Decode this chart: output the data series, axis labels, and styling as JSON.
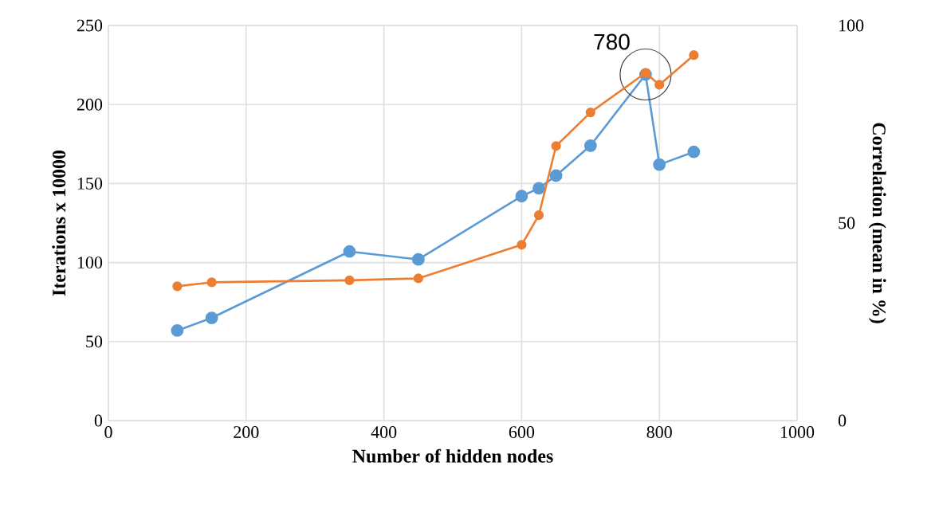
{
  "chart_data": {
    "type": "line",
    "xlabel": "Number of hidden nodes",
    "ylabel": "Iterations x 10000",
    "y2label": "Correlation (mean in %)",
    "xlim": [
      0,
      1000
    ],
    "xticks": [
      0,
      200,
      400,
      600,
      800,
      1000
    ],
    "ylim": [
      0,
      250
    ],
    "yticks": [
      0,
      50,
      100,
      150,
      200,
      250
    ],
    "y2lim": [
      0,
      100
    ],
    "y2ticks": [
      0,
      50,
      100
    ],
    "grid": true,
    "marker": "circle",
    "line_style": "solid",
    "annotations": [
      {
        "text": "780",
        "x": 780,
        "y": 219
      }
    ],
    "series": [
      {
        "color": "#5b9bd5",
        "x": [
          100,
          150,
          350,
          450,
          600,
          625,
          650,
          700,
          780,
          800,
          850
        ],
        "values": [
          57,
          65,
          107,
          102,
          142,
          147,
          155,
          174,
          219,
          162,
          170
        ]
      },
      {
        "color": "#ed7d31",
        "axis": "y2",
        "x": [
          100,
          150,
          350,
          450,
          600,
          625,
          650,
          700,
          780,
          800,
          850
        ],
        "values": [
          34,
          35,
          35.5,
          36,
          44.5,
          52,
          69.5,
          78,
          88,
          85,
          92.5
        ]
      }
    ]
  }
}
